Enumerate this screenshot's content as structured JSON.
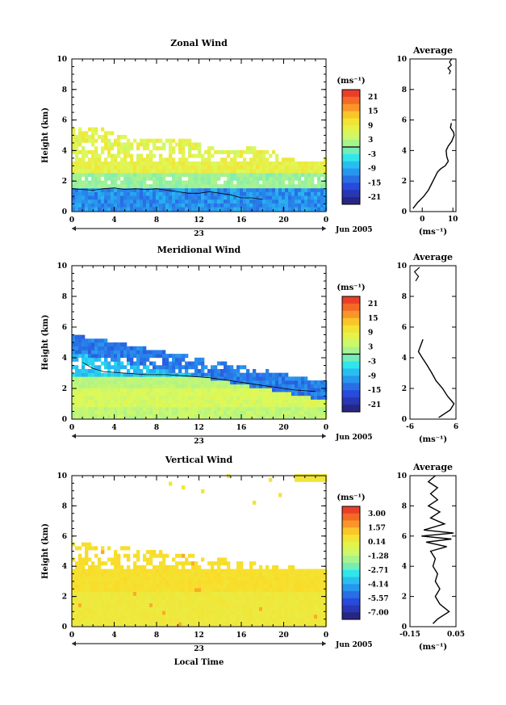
{
  "figure": {
    "xlabel": "Local Time",
    "date_label": "Jun 2005",
    "day_label": "23",
    "unit_label": "(ms⁻¹)",
    "avg_title": "Average"
  },
  "chart_data": [
    {
      "type": "heatmap",
      "title": "Zonal Wind",
      "xlabel": "",
      "ylabel": "Height (km)",
      "x_ticks": [
        "0",
        "4",
        "8",
        "12",
        "16",
        "20",
        "0"
      ],
      "y_ticks": [
        "0",
        "2",
        "4",
        "6",
        "8",
        "10"
      ],
      "xlim": [
        0,
        24
      ],
      "ylim": [
        0,
        10
      ],
      "colorbar": {
        "unit": "(ms⁻¹)",
        "ticks": [
          "21",
          "15",
          "9",
          "3",
          "-3",
          "-9",
          "-15",
          "-21"
        ],
        "range": [
          -24,
          24
        ]
      },
      "zero_contour_km": [
        [
          0,
          1.5
        ],
        [
          1,
          1.45
        ],
        [
          2,
          1.4
        ],
        [
          3,
          1.5
        ],
        [
          4,
          1.55
        ],
        [
          5,
          1.45
        ],
        [
          6,
          1.5
        ],
        [
          7,
          1.45
        ],
        [
          8,
          1.5
        ],
        [
          9,
          1.4
        ],
        [
          10,
          1.3
        ],
        [
          11,
          1.2
        ],
        [
          12,
          1.2
        ],
        [
          13,
          1.3
        ],
        [
          14,
          1.2
        ],
        [
          15,
          1.1
        ],
        [
          16,
          0.9
        ],
        [
          17,
          0.9
        ],
        [
          18,
          0.8
        ]
      ],
      "profile": {
        "title": "Average",
        "xlabel": "(ms⁻¹)",
        "x_ticks": [
          "0",
          "10"
        ],
        "xlim": [
          -4,
          11
        ],
        "y_ticks": [
          "0",
          "2",
          "4",
          "6",
          "8",
          "10"
        ],
        "points": [
          [
            -3,
            0.2
          ],
          [
            -1.5,
            0.6
          ],
          [
            0.5,
            1
          ],
          [
            2,
            1.4
          ],
          [
            3,
            1.8
          ],
          [
            4,
            2.2
          ],
          [
            5,
            2.6
          ],
          [
            6,
            2.8
          ],
          [
            7.5,
            3
          ],
          [
            8.5,
            3.3
          ],
          [
            8,
            3.6
          ],
          [
            7.8,
            4
          ],
          [
            8.5,
            4.3
          ],
          [
            9.6,
            4.6
          ],
          [
            10.4,
            5
          ],
          [
            10.2,
            5.2
          ],
          [
            9.2,
            5.5
          ],
          [
            9.5,
            5.8
          ]
        ],
        "top_points": [
          [
            8.8,
            9.0
          ],
          [
            9.2,
            9.2
          ],
          [
            8.4,
            9.4
          ],
          [
            9.5,
            9.6
          ],
          [
            8.9,
            9.8
          ],
          [
            9.6,
            10
          ]
        ]
      }
    },
    {
      "type": "heatmap",
      "title": "Meridional Wind",
      "xlabel": "",
      "ylabel": "Height (km)",
      "x_ticks": [
        "0",
        "4",
        "8",
        "12",
        "16",
        "20",
        "0"
      ],
      "y_ticks": [
        "0",
        "2",
        "4",
        "6",
        "8",
        "10"
      ],
      "xlim": [
        0,
        24
      ],
      "ylim": [
        0,
        10
      ],
      "colorbar": {
        "unit": "(ms⁻¹)",
        "ticks": [
          "21",
          "15",
          "9",
          "3",
          "-3",
          "-9",
          "-15",
          "-21"
        ],
        "range": [
          -24,
          24
        ]
      },
      "zero_contour_km": [
        [
          1,
          3.7
        ],
        [
          2,
          3.3
        ],
        [
          3,
          3.1
        ],
        [
          5,
          3.0
        ],
        [
          7,
          2.9
        ],
        [
          9,
          2.9
        ],
        [
          11,
          2.8
        ],
        [
          13,
          2.7
        ],
        [
          15,
          2.5
        ],
        [
          17,
          2.3
        ],
        [
          19,
          2.1
        ],
        [
          21,
          1.9
        ],
        [
          23,
          1.8
        ]
      ],
      "profile": {
        "title": "Average",
        "xlabel": "(ms⁻¹)",
        "x_ticks": [
          "-6",
          "6"
        ],
        "xlim": [
          -6,
          6
        ],
        "y_ticks": [
          "0",
          "2",
          "4",
          "6",
          "8",
          "10"
        ],
        "points": [
          [
            1.5,
            0.1
          ],
          [
            4.5,
            0.6
          ],
          [
            5.5,
            1
          ],
          [
            3.8,
            1.5
          ],
          [
            2.5,
            2
          ],
          [
            0.8,
            2.5
          ],
          [
            -0.3,
            3
          ],
          [
            -1.5,
            3.5
          ],
          [
            -2.8,
            4
          ],
          [
            -3.8,
            4.4
          ],
          [
            -3.2,
            4.8
          ],
          [
            -2.6,
            5.2
          ]
        ],
        "top_points": [
          [
            -4.5,
            9.0
          ],
          [
            -3.8,
            9.3
          ],
          [
            -4.8,
            9.6
          ],
          [
            -3.5,
            9.9
          ]
        ]
      }
    },
    {
      "type": "heatmap",
      "title": "Vertical Wind",
      "xlabel": "Local Time",
      "ylabel": "Height (km)",
      "x_ticks": [
        "0",
        "4",
        "8",
        "12",
        "16",
        "20",
        "0"
      ],
      "y_ticks": [
        "0",
        "2",
        "4",
        "6",
        "8",
        "10"
      ],
      "xlim": [
        0,
        24
      ],
      "ylim": [
        0,
        10
      ],
      "colorbar": {
        "unit": "(ms⁻¹)",
        "ticks": [
          "3.00",
          "1.57",
          "0.14",
          "-1.28",
          "-2.71",
          "-4.14",
          "-5.57",
          "-7.00"
        ],
        "range": [
          -7.7,
          3.7
        ]
      },
      "profile": {
        "title": "Average",
        "xlabel": "(ms⁻¹)",
        "x_ticks": [
          "-0.15",
          "0.05"
        ],
        "xlim": [
          -0.15,
          0.05
        ],
        "y_ticks": [
          "0",
          "2",
          "4",
          "6",
          "8",
          "10"
        ],
        "points": [
          [
            -0.05,
            0.2
          ],
          [
            -0.03,
            0.5
          ],
          [
            0.02,
            1
          ],
          [
            -0.02,
            1.5
          ],
          [
            -0.04,
            2
          ],
          [
            -0.02,
            2.5
          ],
          [
            -0.04,
            3
          ],
          [
            -0.03,
            3.5
          ],
          [
            -0.05,
            4
          ],
          [
            -0.04,
            4.5
          ],
          [
            -0.06,
            5
          ],
          [
            0.01,
            5.3
          ],
          [
            -0.08,
            5.6
          ],
          [
            0.03,
            5.8
          ],
          [
            -0.1,
            6
          ],
          [
            0.04,
            6.2
          ],
          [
            -0.09,
            6.4
          ],
          [
            0.0,
            6.8
          ],
          [
            -0.06,
            7.2
          ],
          [
            -0.02,
            7.6
          ],
          [
            -0.07,
            8
          ],
          [
            -0.03,
            8.4
          ],
          [
            -0.06,
            8.8
          ],
          [
            -0.03,
            9.2
          ],
          [
            -0.07,
            9.6
          ],
          [
            -0.04,
            10
          ]
        ]
      }
    }
  ]
}
